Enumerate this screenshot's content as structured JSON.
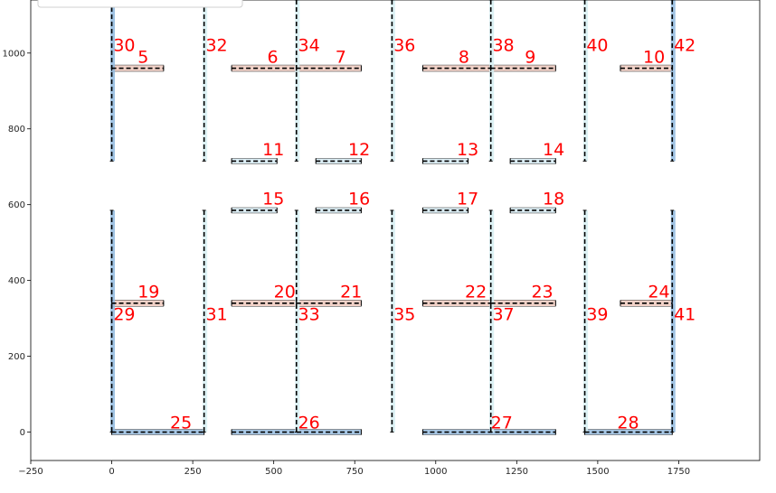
{
  "chart_data": {
    "type": "structural-layout",
    "xlim": [
      -250,
      2000
    ],
    "ylim": [
      -75,
      1140
    ],
    "x_ticks": [
      -250,
      0,
      250,
      500,
      750,
      1000,
      1250,
      1500,
      1750
    ],
    "y_ticks": [
      0,
      200,
      400,
      600,
      800,
      1000
    ],
    "grid": false,
    "legend": {
      "placement": "top-left",
      "visible_text": ""
    },
    "colors": {
      "column_fill": "#d6eef2",
      "column_fill_strong": "#8fb8de",
      "beam_fill": "#f2d2c8",
      "slab_fill": "#a8c8e6",
      "short_beam_fill": "#dceef5",
      "centerline": "#000000",
      "label": "#ff0000"
    },
    "elements": [
      {
        "id": "5",
        "kind": "beam",
        "x1": 0,
        "x2": 160,
        "y": 960
      },
      {
        "id": "6",
        "kind": "beam",
        "x1": 370,
        "x2": 570,
        "y": 960
      },
      {
        "id": "7",
        "kind": "beam",
        "x1": 570,
        "x2": 770,
        "y": 960
      },
      {
        "id": "8",
        "kind": "beam",
        "x1": 960,
        "x2": 1170,
        "y": 960
      },
      {
        "id": "9",
        "kind": "beam",
        "x1": 1170,
        "x2": 1370,
        "y": 960
      },
      {
        "id": "10",
        "kind": "beam",
        "x1": 1570,
        "x2": 1730,
        "y": 960
      },
      {
        "id": "11",
        "kind": "short",
        "x1": 370,
        "x2": 510,
        "y": 715
      },
      {
        "id": "12",
        "kind": "short",
        "x1": 630,
        "x2": 770,
        "y": 715
      },
      {
        "id": "13",
        "kind": "short",
        "x1": 960,
        "x2": 1100,
        "y": 715
      },
      {
        "id": "14",
        "kind": "short",
        "x1": 1230,
        "x2": 1370,
        "y": 715
      },
      {
        "id": "15",
        "kind": "short",
        "x1": 370,
        "x2": 510,
        "y": 585
      },
      {
        "id": "16",
        "kind": "short",
        "x1": 630,
        "x2": 770,
        "y": 585
      },
      {
        "id": "17",
        "kind": "short",
        "x1": 960,
        "x2": 1100,
        "y": 585
      },
      {
        "id": "18",
        "kind": "short",
        "x1": 1230,
        "x2": 1370,
        "y": 585
      },
      {
        "id": "19",
        "kind": "beam",
        "x1": 0,
        "x2": 160,
        "y": 340
      },
      {
        "id": "20",
        "kind": "beam",
        "x1": 370,
        "x2": 570,
        "y": 340
      },
      {
        "id": "21",
        "kind": "beam",
        "x1": 570,
        "x2": 770,
        "y": 340
      },
      {
        "id": "22",
        "kind": "beam",
        "x1": 960,
        "x2": 1170,
        "y": 340
      },
      {
        "id": "23",
        "kind": "beam",
        "x1": 1170,
        "x2": 1370,
        "y": 340
      },
      {
        "id": "24",
        "kind": "beam",
        "x1": 1570,
        "x2": 1730,
        "y": 340
      },
      {
        "id": "25",
        "kind": "slab",
        "x1": 0,
        "x2": 285,
        "y": 0
      },
      {
        "id": "26",
        "kind": "slab",
        "x1": 370,
        "x2": 770,
        "y": 0
      },
      {
        "id": "27",
        "kind": "slab",
        "x1": 960,
        "x2": 1370,
        "y": 0
      },
      {
        "id": "28",
        "kind": "slab",
        "x1": 1460,
        "x2": 1730,
        "y": 0
      },
      {
        "id": "29",
        "kind": "column",
        "x": 0,
        "y1": 0,
        "y2": 585
      },
      {
        "id": "30",
        "kind": "column",
        "x": 0,
        "y1": 715,
        "y2": 1140
      },
      {
        "id": "31",
        "kind": "column",
        "x": 285,
        "y1": 0,
        "y2": 585
      },
      {
        "id": "32",
        "kind": "column",
        "x": 285,
        "y1": 715,
        "y2": 1140
      },
      {
        "id": "33",
        "kind": "column",
        "x": 570,
        "y1": 0,
        "y2": 585
      },
      {
        "id": "34",
        "kind": "column",
        "x": 570,
        "y1": 715,
        "y2": 1140
      },
      {
        "id": "35",
        "kind": "column",
        "x": 865,
        "y1": 0,
        "y2": 585
      },
      {
        "id": "36",
        "kind": "column",
        "x": 865,
        "y1": 715,
        "y2": 1140
      },
      {
        "id": "37",
        "kind": "column",
        "x": 1170,
        "y1": 0,
        "y2": 585
      },
      {
        "id": "38",
        "kind": "column",
        "x": 1170,
        "y1": 715,
        "y2": 1140
      },
      {
        "id": "39",
        "kind": "column",
        "x": 1460,
        "y1": 0,
        "y2": 585
      },
      {
        "id": "40",
        "kind": "column",
        "x": 1460,
        "y1": 715,
        "y2": 1140
      },
      {
        "id": "41",
        "kind": "column",
        "x": 1730,
        "y1": 0,
        "y2": 585
      },
      {
        "id": "42",
        "kind": "column",
        "x": 1730,
        "y1": 715,
        "y2": 1140
      }
    ],
    "labels": [
      {
        "text": "5",
        "x": 80,
        "y": 975
      },
      {
        "text": "6",
        "x": 480,
        "y": 975
      },
      {
        "text": "7",
        "x": 690,
        "y": 975
      },
      {
        "text": "8",
        "x": 1070,
        "y": 975
      },
      {
        "text": "9",
        "x": 1275,
        "y": 975
      },
      {
        "text": "10",
        "x": 1640,
        "y": 975
      },
      {
        "text": "11",
        "x": 465,
        "y": 730
      },
      {
        "text": "12",
        "x": 730,
        "y": 730
      },
      {
        "text": "13",
        "x": 1065,
        "y": 730
      },
      {
        "text": "14",
        "x": 1330,
        "y": 730
      },
      {
        "text": "15",
        "x": 465,
        "y": 600
      },
      {
        "text": "16",
        "x": 730,
        "y": 600
      },
      {
        "text": "17",
        "x": 1065,
        "y": 600
      },
      {
        "text": "18",
        "x": 1330,
        "y": 600
      },
      {
        "text": "19",
        "x": 80,
        "y": 355
      },
      {
        "text": "20",
        "x": 500,
        "y": 355
      },
      {
        "text": "21",
        "x": 705,
        "y": 355
      },
      {
        "text": "22",
        "x": 1090,
        "y": 355
      },
      {
        "text": "23",
        "x": 1295,
        "y": 355
      },
      {
        "text": "24",
        "x": 1655,
        "y": 355
      },
      {
        "text": "25",
        "x": 180,
        "y": 10
      },
      {
        "text": "26",
        "x": 575,
        "y": 10
      },
      {
        "text": "27",
        "x": 1170,
        "y": 10
      },
      {
        "text": "28",
        "x": 1560,
        "y": 10
      },
      {
        "text": "29",
        "x": 5,
        "y": 295
      },
      {
        "text": "30",
        "x": 5,
        "y": 1005
      },
      {
        "text": "31",
        "x": 290,
        "y": 295
      },
      {
        "text": "32",
        "x": 290,
        "y": 1005
      },
      {
        "text": "33",
        "x": 575,
        "y": 295
      },
      {
        "text": "34",
        "x": 575,
        "y": 1005
      },
      {
        "text": "35",
        "x": 870,
        "y": 295
      },
      {
        "text": "36",
        "x": 870,
        "y": 1005
      },
      {
        "text": "37",
        "x": 1175,
        "y": 295
      },
      {
        "text": "38",
        "x": 1175,
        "y": 1005
      },
      {
        "text": "39",
        "x": 1465,
        "y": 295
      },
      {
        "text": "40",
        "x": 1465,
        "y": 1005
      },
      {
        "text": "41",
        "x": 1735,
        "y": 295
      },
      {
        "text": "42",
        "x": 1735,
        "y": 1005
      }
    ]
  }
}
